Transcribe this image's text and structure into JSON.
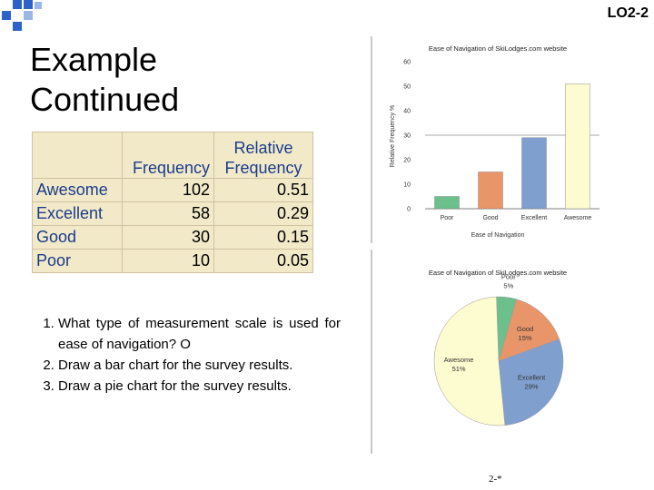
{
  "header": {
    "lo_label": "LO2-2"
  },
  "slide": {
    "title_line1": "Example",
    "title_line2": "Continued",
    "page_number": "2-*"
  },
  "table": {
    "headers": [
      "",
      "Frequency",
      "Relative\nFrequency"
    ],
    "header_col3_line1": "Relative",
    "header_col3_line2": "Frequency",
    "rows": [
      {
        "category": "Awesome",
        "frequency": "102",
        "relative": "0.51"
      },
      {
        "category": "Excellent",
        "frequency": "58",
        "relative": "0.29"
      },
      {
        "category": "Good",
        "frequency": "30",
        "relative": "0.15"
      },
      {
        "category": "Poor",
        "frequency": "10",
        "relative": "0.05"
      }
    ]
  },
  "questions": [
    "What type of measurement scale is used for ease of navigation? O",
    "Draw a bar chart for the survey results.",
    "Draw a pie chart for the survey results."
  ],
  "colors": {
    "poor": "#6cc08b",
    "good": "#e8956a",
    "excellent": "#7f9fcf",
    "awesome": "#fdfbd0",
    "table_bg": "#f1e9c8",
    "label_blue": "#1b3c8c"
  },
  "chart_data": [
    {
      "type": "bar",
      "title": "Ease of Navigation of SkiLodges.com website",
      "xlabel": "Ease of Navigation",
      "ylabel": "Relative Frequency %",
      "categories": [
        "Poor",
        "Good",
        "Excellent",
        "Awesome"
      ],
      "values": [
        5,
        15,
        29,
        51
      ],
      "ylim": [
        0,
        60
      ],
      "yticks": [
        0,
        10,
        20,
        30,
        40,
        50,
        60
      ],
      "grid": false
    },
    {
      "type": "pie",
      "title": "Ease of Navigation of SkiLodges.com website",
      "slices": [
        {
          "label": "Poor",
          "value": 5,
          "pct": "5%"
        },
        {
          "label": "Good",
          "value": 15,
          "pct": "15%"
        },
        {
          "label": "Excellent",
          "value": 29,
          "pct": "29%"
        },
        {
          "label": "Awesome",
          "value": 51,
          "pct": "51%"
        }
      ]
    }
  ]
}
